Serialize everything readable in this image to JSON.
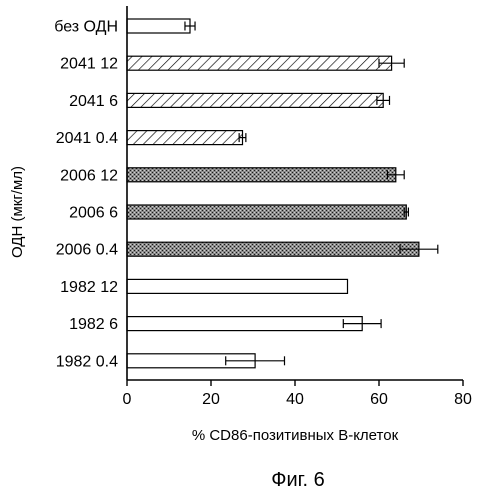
{
  "chart_data": {
    "type": "bar",
    "orientation": "horizontal",
    "categories": [
      "без ОДН",
      "2041 12",
      "2041 6",
      "2041 0.4",
      "2006 12",
      "2006 6",
      "2006 0.4",
      "1982 12",
      "1982 6",
      "1982 0.4"
    ],
    "values": [
      15,
      63,
      61,
      27.5,
      64,
      66.5,
      69.5,
      52.5,
      56,
      30.5
    ],
    "errors": [
      1.2,
      3,
      1.5,
      0.8,
      2,
      0.5,
      4.5,
      0,
      4.5,
      7
    ],
    "fills": [
      "blank",
      "hatched",
      "hatched",
      "hatched",
      "stippled",
      "stippled",
      "stippled",
      "blank",
      "blank",
      "blank"
    ],
    "xlabel": "% CD86-позитивных В-клеток",
    "ylabel": "ОДН (мкг/мл)",
    "xlim": [
      0,
      80
    ],
    "xticks": [
      0,
      20,
      40,
      60,
      80
    ],
    "grid": false
  },
  "caption": "Фиг. 6"
}
